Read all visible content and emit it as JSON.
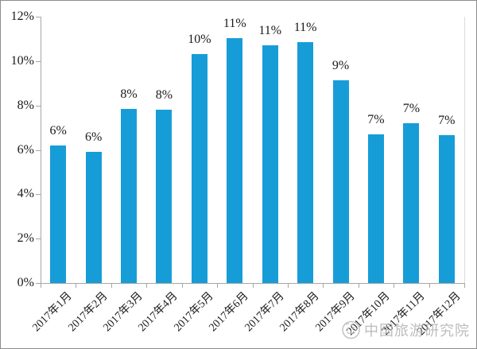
{
  "chart_data": {
    "type": "bar",
    "title": "",
    "xlabel": "",
    "ylabel": "",
    "categories": [
      "2017年1月",
      "2017年2月",
      "2017年3月",
      "2017年4月",
      "2017年5月",
      "2017年6月",
      "2017年7月",
      "2017年8月",
      "2017年9月",
      "2017年10月",
      "2017年11月",
      "2017年12月"
    ],
    "values": [
      6.2,
      5.9,
      7.85,
      7.8,
      10.3,
      11.05,
      10.7,
      10.85,
      9.15,
      6.7,
      7.2,
      6.65
    ],
    "bar_labels": [
      "6%",
      "6%",
      "8%",
      "8%",
      "10%",
      "11%",
      "11%",
      "11%",
      "9%",
      "7%",
      "7%",
      "7%"
    ],
    "ylim": [
      0,
      12
    ],
    "ytick_step": 2,
    "ytick_labels": [
      "0%",
      "2%",
      "4%",
      "6%",
      "8%",
      "10%",
      "12%"
    ],
    "grid": false,
    "legend": null,
    "bar_color": "#169dd8",
    "axis_color": "#a6a6a6",
    "label_color": "#1a1a1a"
  },
  "watermark": {
    "text": "中国旅游研究院",
    "color": "#b3b1b1",
    "logo_icon": "circular-emblem-icon"
  }
}
